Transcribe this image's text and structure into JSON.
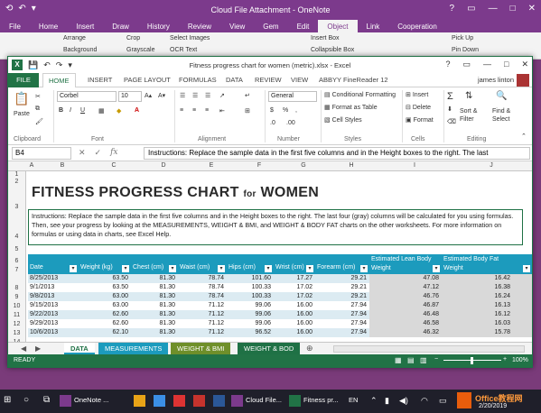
{
  "onenote": {
    "title": "Cloud File Attachment - OneNote",
    "window_controls": [
      "?",
      "▭",
      "—",
      "□",
      "✕"
    ],
    "tabs": [
      "File",
      "Home",
      "Insert",
      "Draw",
      "History",
      "Review",
      "View",
      "Gem",
      "Edit",
      "Object",
      "Link",
      "Cooperation"
    ],
    "active_tab": "Object",
    "ribbon_items": [
      "Arrange",
      "Crop",
      "Select Images",
      "Background",
      "Grayscale",
      "OCR Text",
      "Insert Box",
      "Collapsible Box",
      "Pick Up",
      "Pin Down"
    ]
  },
  "excel": {
    "title": "Fitness progress chart for women (metric).xlsx - Excel",
    "window_controls": [
      "?",
      "▭",
      "—",
      "□",
      "✕"
    ],
    "tabs": [
      "FILE",
      "HOME",
      "INSERT",
      "PAGE LAYOUT",
      "FORMULAS",
      "DATA",
      "REVIEW",
      "VIEW",
      "ABBYY FineReader 12"
    ],
    "active_tab": "HOME",
    "user": "james linton",
    "ribbon": {
      "paste": "Paste",
      "font_name": "Corbel",
      "font_size": "10",
      "number_format": "General",
      "conditional_formatting": "Conditional Formatting",
      "format_as_table": "Format as Table",
      "cell_styles": "Cell Styles",
      "insert": "Insert",
      "delete": "Delete",
      "format": "Format",
      "sort_filter": "Sort & Filter",
      "find_select": "Find & Select",
      "groups": [
        "Clipboard",
        "Font",
        "Alignment",
        "Number",
        "Styles",
        "Cells",
        "Editing"
      ]
    },
    "name_box": "B4",
    "formula": "Instructions: Replace the sample data in the first five columns and in the Height boxes to the right. The last",
    "columns": [
      "A",
      "B",
      "C",
      "D",
      "E",
      "F",
      "G",
      "H",
      "I",
      "J"
    ],
    "rows": [
      "1",
      "2",
      "3",
      "4",
      "5",
      "6",
      "7",
      "8",
      "9",
      "10",
      "11",
      "12",
      "13",
      "14",
      "15",
      "16"
    ],
    "sheet_title_1": "FITNESS PROGRESS CHART",
    "sheet_title_for": "for",
    "sheet_title_2": "WOMEN",
    "instructions": "Instructions: Replace the sample data in the first five columns and in the Height boxes to the right. The last four (gray) columns will be calculated for you using formulas. Then, see your progress by looking at the MEASUREMENTS, WEIGHT & BMI, and WEIGHT & BODY FAT charts on the other worksheets. For more information on formulas or using data in charts, see Excel Help.",
    "table_headers": [
      "Date",
      "Weight (kg)",
      "Chest (cm)",
      "Waist (cm)",
      "Hips (cm)",
      "Wrist (cm)",
      "Forearm (cm)",
      "Estimated Lean Body Weight",
      "Estimated Body Fat Weight"
    ],
    "table_rows": [
      [
        "8/25/2013",
        "63.50",
        "81.30",
        "78.74",
        "101.60",
        "17.27",
        "29.21",
        "47.08",
        "16.42"
      ],
      [
        "9/1/2013",
        "63.50",
        "81.30",
        "78.74",
        "100.33",
        "17.02",
        "29.21",
        "47.12",
        "16.38"
      ],
      [
        "9/8/2013",
        "63.00",
        "81.30",
        "78.74",
        "100.33",
        "17.02",
        "29.21",
        "46.76",
        "16.24"
      ],
      [
        "9/15/2013",
        "63.00",
        "81.30",
        "71.12",
        "99.06",
        "16.00",
        "27.94",
        "46.87",
        "16.13"
      ],
      [
        "9/22/2013",
        "62.60",
        "81.30",
        "71.12",
        "99.06",
        "16.00",
        "27.94",
        "46.48",
        "16.12"
      ],
      [
        "9/29/2013",
        "62.60",
        "81.30",
        "71.12",
        "99.06",
        "16.00",
        "27.94",
        "46.58",
        "16.03"
      ],
      [
        "10/6/2013",
        "62.10",
        "81.30",
        "71.12",
        "96.52",
        "16.00",
        "27.94",
        "46.32",
        "15.78"
      ]
    ],
    "sheet_tabs": [
      "DATA",
      "MEASUREMENTS",
      "WEIGHT & BMI",
      "WEIGHT & BOD"
    ],
    "sheet_tab_colors": [
      "#1c9bbd",
      "#1c9bbd",
      "#6f8f2a",
      "#1f7145"
    ],
    "status": "READY",
    "zoom": "100%"
  },
  "taskbar": {
    "items": [
      "OneNote ...",
      "Cloud File...",
      "Fitness pr..."
    ],
    "lang": "EN",
    "time": "2/20/2019",
    "watermark": "Office教程网"
  }
}
